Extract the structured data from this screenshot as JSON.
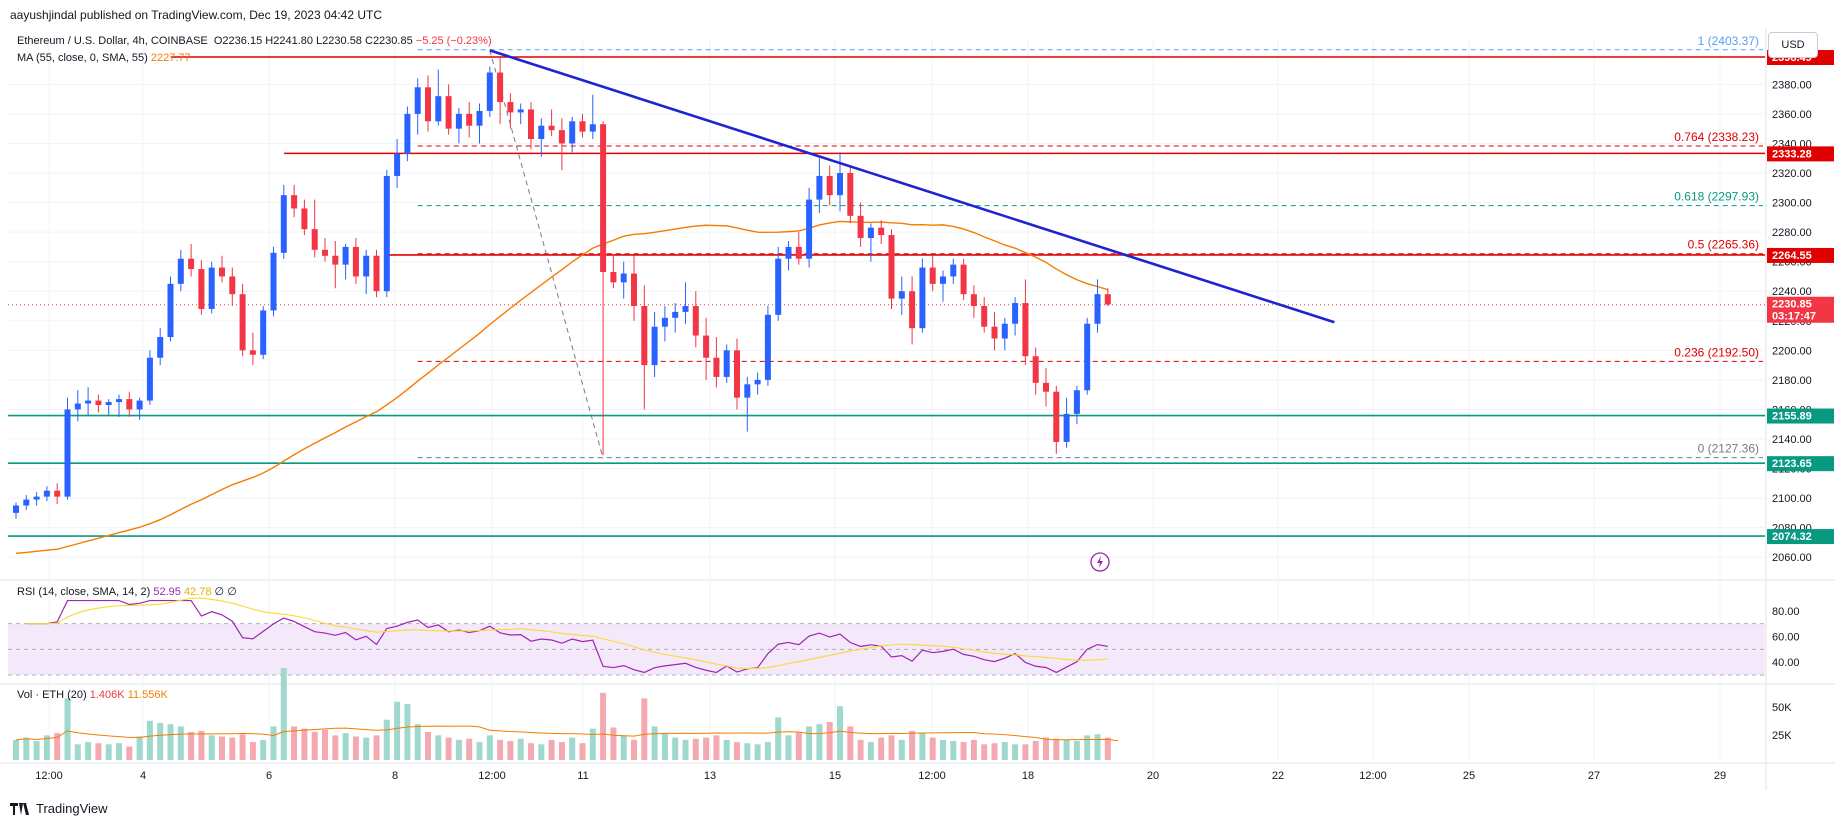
{
  "publisher": "aayushjindal published on TradingView.com, Dec 19, 2023 04:42 UTC",
  "symbol_line": {
    "name": "Ethereum / U.S. Dollar, 4h, COINBASE",
    "open": "O2236.15",
    "high": "H2241.80",
    "low": "L2230.58",
    "close": "C2230.85",
    "change": "−5.25 (−0.23%)"
  },
  "ma_legend": {
    "label": "MA (55, close, 0, SMA, 55)",
    "value": "2227.77"
  },
  "rsi_legend": {
    "label": "RSI (14, close, SMA, 14, 2)",
    "v1": "52.95",
    "v2": "42.78",
    "v3": "∅",
    "v4": "∅"
  },
  "vol_legend": {
    "label": "Vol · ETH (20)",
    "v1": "1.406K",
    "v2": "11.556K"
  },
  "currency": "USD",
  "footer_brand": "TradingView",
  "colors": {
    "up": "#2962ff",
    "down": "#f23645",
    "ma": "#f57c00",
    "trend": "#1f24d1",
    "support": "#089981",
    "rsi": "#9c27b0",
    "rsi_ma": "#fdd835",
    "resist": "#e00000"
  },
  "chart_data": {
    "type": "candlestick",
    "price_axis": {
      "ticks": [
        2060,
        2080,
        2100,
        2120,
        2140,
        2160,
        2180,
        2200,
        2220,
        2240,
        2260,
        2280,
        2300,
        2320,
        2340,
        2360,
        2380
      ],
      "range": [
        2050,
        2410
      ]
    },
    "x_ticks": [
      "12:00",
      "4",
      "6",
      "8",
      "12:00",
      "11",
      "13",
      "15",
      "12:00",
      "18",
      "20",
      "22",
      "12:00",
      "25",
      "27",
      "29"
    ],
    "price_tags": [
      {
        "value": 2398.49,
        "text": "2398.49",
        "color": "#e00000"
      },
      {
        "value": 2333.28,
        "text": "2333.28",
        "color": "#e00000"
      },
      {
        "value": 2264.55,
        "text": "2264.55",
        "color": "#e00000"
      },
      {
        "value": 2230.85,
        "text": "2230.85",
        "sub": "03:17:47",
        "color": "#f23645"
      },
      {
        "value": 2155.89,
        "text": "2155.89",
        "color": "#089981"
      },
      {
        "value": 2123.65,
        "text": "2123.65",
        "color": "#089981"
      },
      {
        "value": 2074.32,
        "text": "2074.32",
        "color": "#089981"
      }
    ],
    "fib_levels": [
      {
        "ratio": "1",
        "price": 2403.37,
        "text": "1 (2403.37)",
        "color": "#5b9cf6"
      },
      {
        "ratio": "0.764",
        "price": 2338.23,
        "text": "0.764 (2338.23)",
        "color": "#e00000"
      },
      {
        "ratio": "0.618",
        "price": 2297.93,
        "text": "0.618 (2297.93)",
        "color": "#089981"
      },
      {
        "ratio": "0.5",
        "price": 2265.36,
        "text": "0.5 (2265.36)",
        "color": "#e00000"
      },
      {
        "ratio": "0.236",
        "price": 2192.5,
        "text": "0.236 (2192.50)",
        "color": "#e00000"
      },
      {
        "ratio": "0",
        "price": 2127.36,
        "text": "0 (2127.36)",
        "color": "#787b86"
      }
    ],
    "horizontal_lines": [
      {
        "price": 2398.49,
        "color": "#e00000",
        "from_index": 16
      },
      {
        "price": 2333.28,
        "color": "#e00000",
        "from_index": 27
      },
      {
        "price": 2264.55,
        "color": "#e00000",
        "from_index": 37
      },
      {
        "price": 2155.89,
        "color": "#089981",
        "from_index": 0
      },
      {
        "price": 2123.65,
        "color": "#089981",
        "from_index": 0
      },
      {
        "price": 2074.32,
        "color": "#089981",
        "from_index": 0
      }
    ],
    "trendline": {
      "start": {
        "index": 46,
        "price": 2403
      },
      "end": {
        "index": 128,
        "price": 2219
      }
    },
    "candles": [
      [
        2090,
        2097,
        2086,
        2095
      ],
      [
        2095,
        2102,
        2092,
        2099
      ],
      [
        2099,
        2104,
        2095,
        2101
      ],
      [
        2101,
        2108,
        2098,
        2105
      ],
      [
        2105,
        2110,
        2096,
        2101
      ],
      [
        2101,
        2168,
        2099,
        2160
      ],
      [
        2160,
        2173,
        2152,
        2164
      ],
      [
        2164,
        2175,
        2156,
        2166
      ],
      [
        2166,
        2170,
        2158,
        2163
      ],
      [
        2163,
        2167,
        2156,
        2165
      ],
      [
        2165,
        2170,
        2155,
        2167
      ],
      [
        2167,
        2172,
        2155,
        2160
      ],
      [
        2160,
        2168,
        2153,
        2166
      ],
      [
        2166,
        2200,
        2163,
        2195
      ],
      [
        2195,
        2215,
        2190,
        2209
      ],
      [
        2209,
        2250,
        2206,
        2245
      ],
      [
        2245,
        2268,
        2240,
        2262
      ],
      [
        2262,
        2272,
        2250,
        2255
      ],
      [
        2255,
        2261,
        2224,
        2228
      ],
      [
        2228,
        2260,
        2225,
        2256
      ],
      [
        2256,
        2264,
        2246,
        2250
      ],
      [
        2250,
        2256,
        2230,
        2238
      ],
      [
        2238,
        2245,
        2196,
        2200
      ],
      [
        2200,
        2212,
        2190,
        2197
      ],
      [
        2197,
        2230,
        2194,
        2227
      ],
      [
        2227,
        2270,
        2223,
        2266
      ],
      [
        2266,
        2312,
        2262,
        2305
      ],
      [
        2305,
        2312,
        2290,
        2296
      ],
      [
        2296,
        2302,
        2278,
        2282
      ],
      [
        2282,
        2302,
        2263,
        2268
      ],
      [
        2268,
        2276,
        2260,
        2264
      ],
      [
        2264,
        2274,
        2242,
        2258
      ],
      [
        2258,
        2272,
        2248,
        2270
      ],
      [
        2270,
        2276,
        2245,
        2250
      ],
      [
        2250,
        2268,
        2238,
        2264
      ],
      [
        2264,
        2268,
        2236,
        2240
      ],
      [
        2240,
        2322,
        2236,
        2318
      ],
      [
        2318,
        2343,
        2310,
        2333
      ],
      [
        2333,
        2365,
        2328,
        2360
      ],
      [
        2360,
        2384,
        2346,
        2378
      ],
      [
        2378,
        2386,
        2348,
        2355
      ],
      [
        2355,
        2390,
        2352,
        2372
      ],
      [
        2372,
        2380,
        2346,
        2350
      ],
      [
        2350,
        2364,
        2340,
        2360
      ],
      [
        2360,
        2368,
        2344,
        2352
      ],
      [
        2352,
        2367,
        2340,
        2362
      ],
      [
        2362,
        2392,
        2358,
        2388
      ],
      [
        2388,
        2398,
        2353,
        2368
      ],
      [
        2368,
        2374,
        2350,
        2361
      ],
      [
        2361,
        2367,
        2353,
        2363
      ],
      [
        2363,
        2368,
        2336,
        2343
      ],
      [
        2343,
        2357,
        2331,
        2352
      ],
      [
        2352,
        2363,
        2345,
        2349
      ],
      [
        2349,
        2357,
        2322,
        2340
      ],
      [
        2340,
        2358,
        2334,
        2355
      ],
      [
        2355,
        2360,
        2344,
        2348
      ],
      [
        2348,
        2373,
        2343,
        2353
      ],
      [
        2353,
        2355,
        2129,
        2253
      ],
      [
        2253,
        2265,
        2242,
        2246
      ],
      [
        2246,
        2260,
        2235,
        2252
      ],
      [
        2252,
        2264,
        2220,
        2230
      ],
      [
        2230,
        2244,
        2160,
        2190
      ],
      [
        2190,
        2226,
        2182,
        2216
      ],
      [
        2216,
        2230,
        2206,
        2222
      ],
      [
        2222,
        2232,
        2212,
        2226
      ],
      [
        2226,
        2246,
        2218,
        2230
      ],
      [
        2230,
        2240,
        2202,
        2210
      ],
      [
        2210,
        2222,
        2180,
        2195
      ],
      [
        2195,
        2209,
        2175,
        2182
      ],
      [
        2182,
        2204,
        2178,
        2200
      ],
      [
        2200,
        2208,
        2160,
        2168
      ],
      [
        2168,
        2182,
        2145,
        2177
      ],
      [
        2177,
        2185,
        2170,
        2180
      ],
      [
        2180,
        2230,
        2176,
        2224
      ],
      [
        2224,
        2270,
        2220,
        2262
      ],
      [
        2262,
        2274,
        2254,
        2270
      ],
      [
        2270,
        2280,
        2258,
        2262
      ],
      [
        2262,
        2310,
        2256,
        2302
      ],
      [
        2302,
        2330,
        2293,
        2318
      ],
      [
        2318,
        2325,
        2298,
        2305
      ],
      [
        2305,
        2334,
        2294,
        2320
      ],
      [
        2320,
        2324,
        2286,
        2291
      ],
      [
        2291,
        2300,
        2270,
        2276
      ],
      [
        2276,
        2286,
        2260,
        2283
      ],
      [
        2283,
        2288,
        2272,
        2278
      ],
      [
        2278,
        2282,
        2228,
        2235
      ],
      [
        2235,
        2250,
        2224,
        2240
      ],
      [
        2240,
        2250,
        2204,
        2215
      ],
      [
        2215,
        2262,
        2212,
        2256
      ],
      [
        2256,
        2264,
        2240,
        2245
      ],
      [
        2245,
        2254,
        2233,
        2250
      ],
      [
        2250,
        2262,
        2245,
        2258
      ],
      [
        2258,
        2262,
        2234,
        2238
      ],
      [
        2238,
        2244,
        2222,
        2230
      ],
      [
        2230,
        2236,
        2212,
        2216
      ],
      [
        2216,
        2226,
        2200,
        2208
      ],
      [
        2208,
        2222,
        2200,
        2218
      ],
      [
        2218,
        2236,
        2210,
        2232
      ],
      [
        2232,
        2248,
        2190,
        2196
      ],
      [
        2196,
        2202,
        2170,
        2178
      ],
      [
        2178,
        2188,
        2162,
        2172
      ],
      [
        2172,
        2176,
        2130,
        2138
      ],
      [
        2138,
        2168,
        2134,
        2157
      ],
      [
        2157,
        2176,
        2150,
        2173
      ],
      [
        2173,
        2222,
        2170,
        2218
      ],
      [
        2218,
        2248,
        2212,
        2238
      ],
      [
        2238,
        2242,
        2230,
        2231
      ]
    ],
    "volume": [
      18,
      20,
      17,
      22,
      24,
      55,
      14,
      16,
      15,
      14,
      15,
      12,
      21,
      35,
      33,
      32,
      30,
      25,
      26,
      22,
      21,
      20,
      23,
      16,
      18,
      30,
      82,
      30,
      28,
      25,
      27,
      22,
      24,
      21,
      20,
      22,
      36,
      52,
      50,
      32,
      25,
      22,
      20,
      18,
      19,
      16,
      22,
      18,
      17,
      19,
      15,
      14,
      18,
      16,
      20,
      15,
      28,
      60,
      29,
      22,
      18,
      55,
      30,
      24,
      20,
      18,
      19,
      20,
      22,
      18,
      16,
      15,
      14,
      16,
      38,
      22,
      25,
      30,
      32,
      34,
      48,
      30,
      18,
      16,
      20,
      22,
      18,
      26,
      24,
      20,
      18,
      17,
      16,
      18,
      14,
      15,
      16,
      14,
      14,
      17,
      20,
      19,
      18,
      17,
      22,
      23,
      20,
      2
    ],
    "volume_axis": {
      "ticks": [
        "50K",
        "25K"
      ]
    },
    "rsi_axis": {
      "ticks": [
        80,
        60,
        40
      ]
    }
  }
}
